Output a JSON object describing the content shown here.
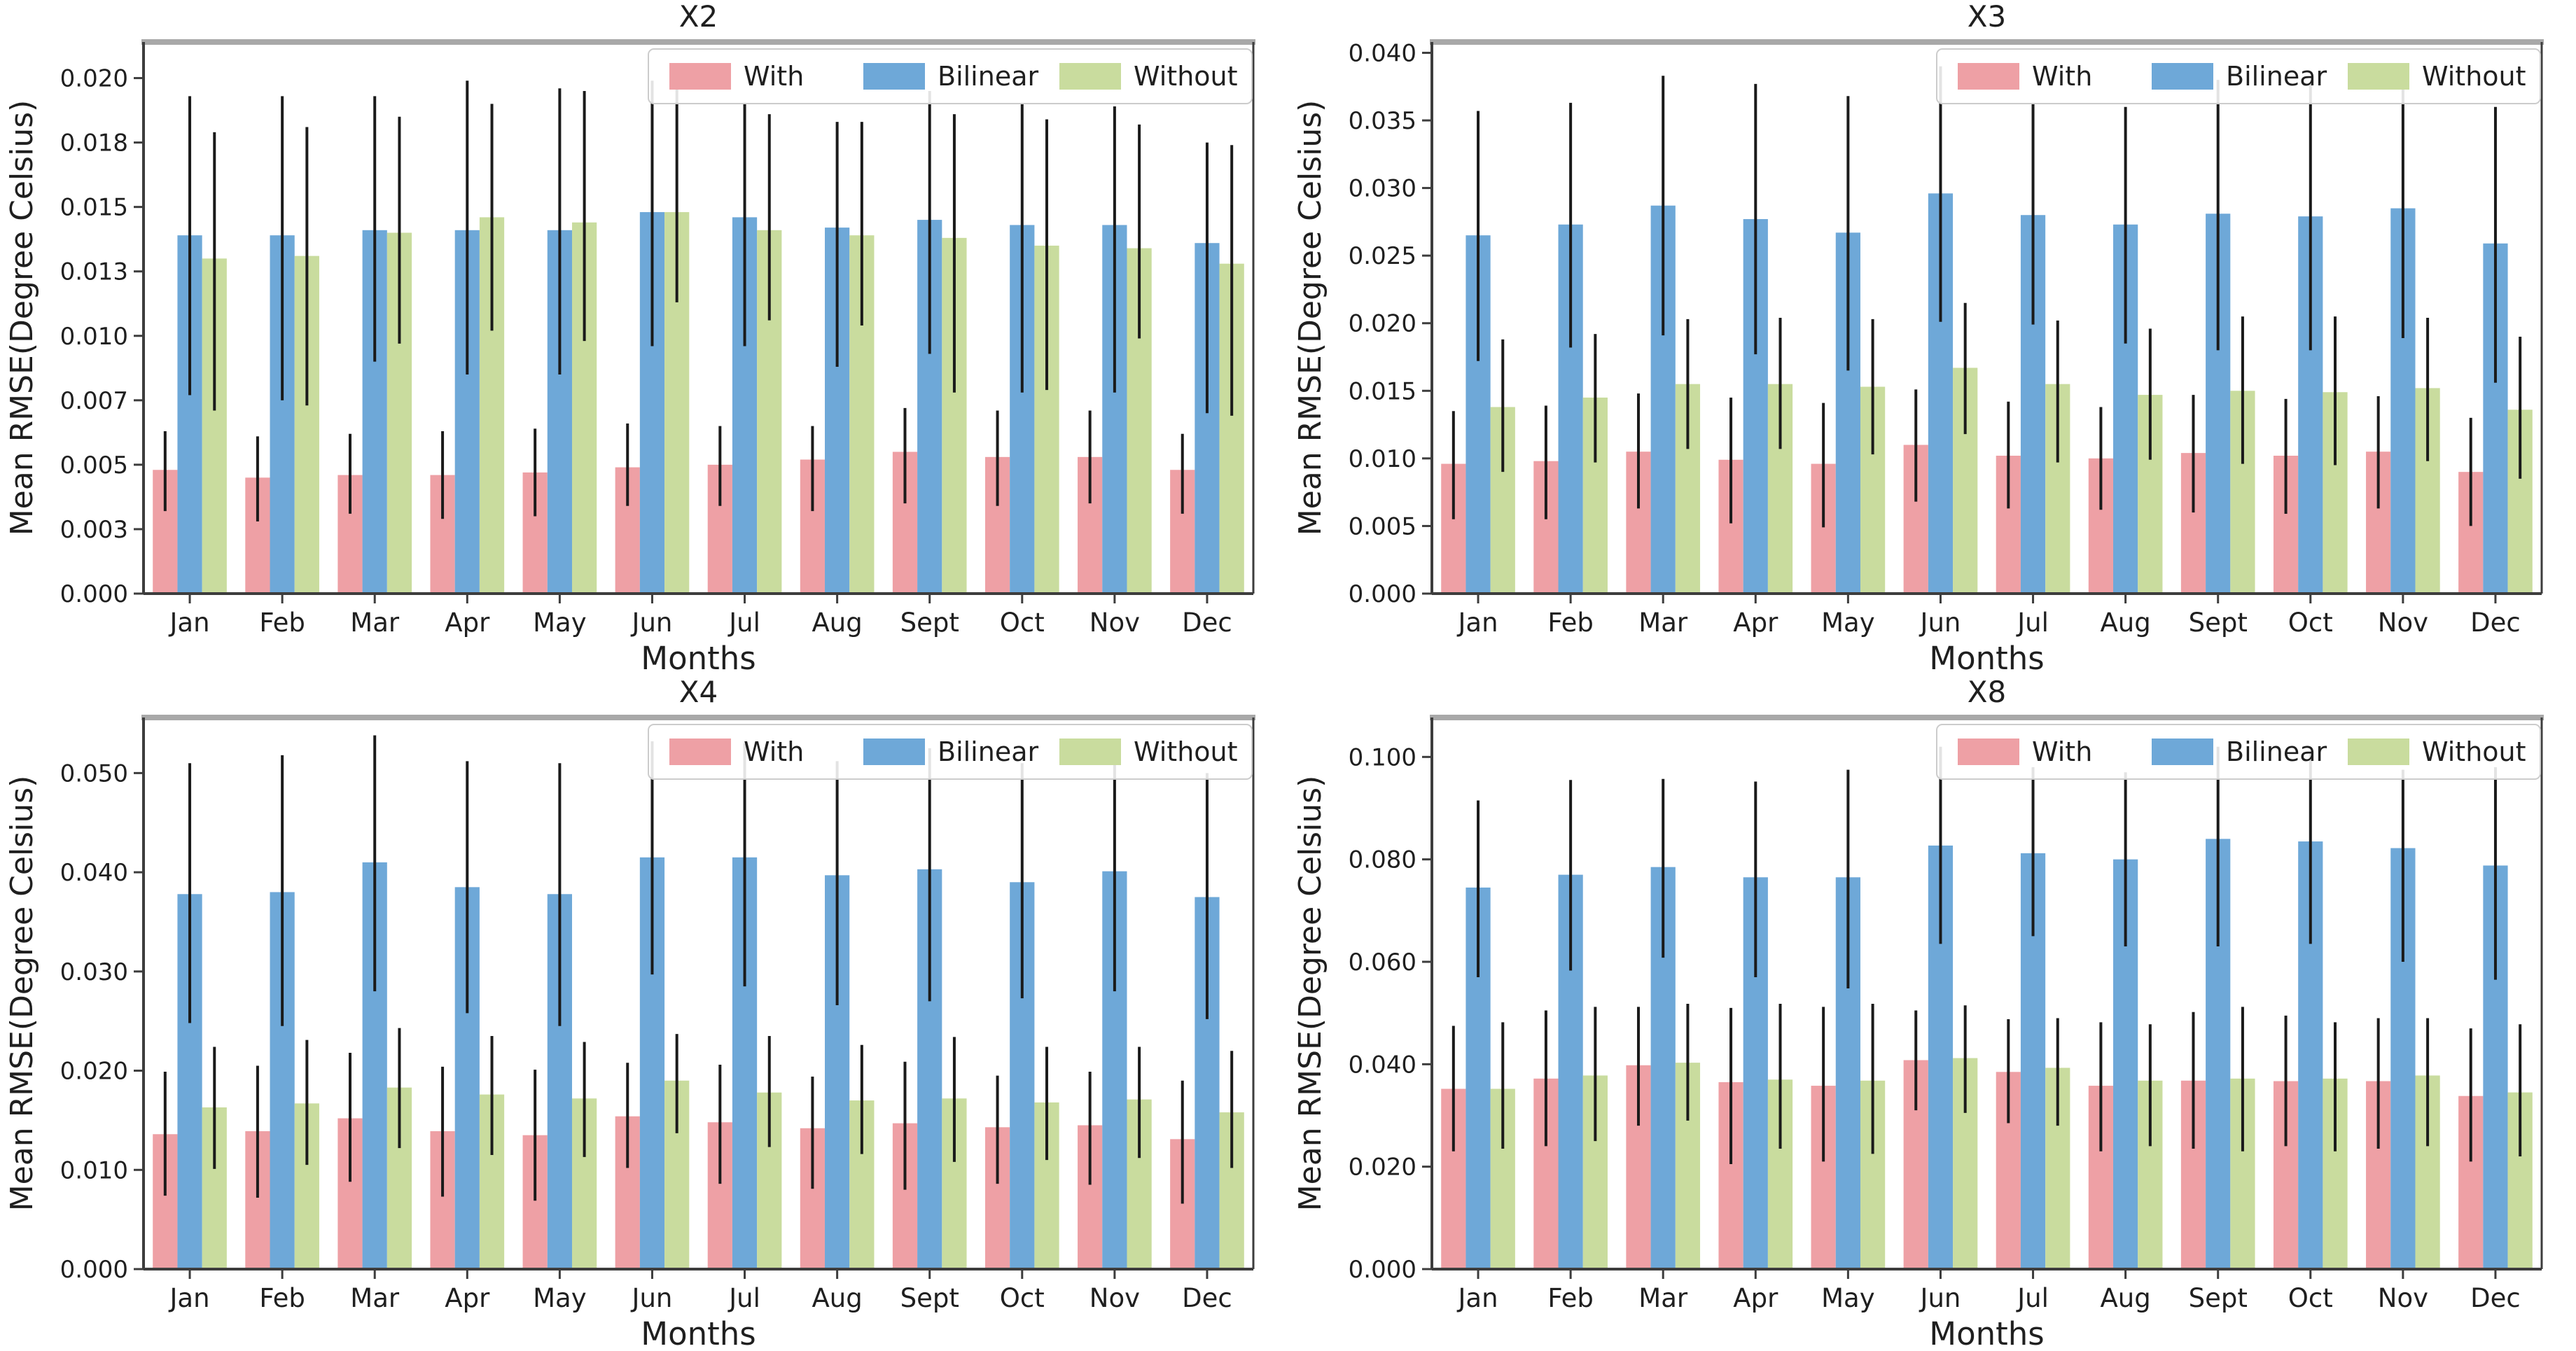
{
  "figure": {
    "background": "#ffffff",
    "layout": "2x2-grid",
    "xlabel": "Months",
    "ylabel": "Mean RMSE(Degree Celsius)"
  },
  "legend": {
    "position": "upper right",
    "items": [
      {
        "label": "With",
        "color": "#EEA0A5"
      },
      {
        "label": "Bilinear",
        "color": "#6EA8D8"
      },
      {
        "label": "Without",
        "color": "#C9DC9E"
      }
    ]
  },
  "style": {
    "errorbar_color": "#1a1a1a",
    "spine_dark": "#3d3d3d",
    "spine_top_gray": "#a8a8a8",
    "text_color": "#1f1f1f",
    "grid": false
  },
  "chart_data": [
    {
      "type": "bar",
      "title": "X2",
      "xlabel": "Months",
      "ylabel": "Mean RMSE(Degree Celsius)",
      "categories": [
        "Jan",
        "Feb",
        "Mar",
        "Apr",
        "May",
        "Jun",
        "Jul",
        "Aug",
        "Sept",
        "Oct",
        "Nov",
        "Dec"
      ],
      "ylim": [
        0,
        0.0214
      ],
      "yticks": {
        "values": [
          0,
          0.0025,
          0.005,
          0.0075,
          0.01,
          0.0125,
          0.015,
          0.0175,
          0.02
        ],
        "labels": [
          "0.000",
          "0.003",
          "0.005",
          "0.007",
          "0.010",
          "0.013",
          "0.015",
          "0.018",
          "0.020"
        ]
      },
      "series": [
        {
          "name": "With",
          "values": [
            0.0048,
            0.0045,
            0.0046,
            0.0046,
            0.0047,
            0.0049,
            0.005,
            0.0052,
            0.0055,
            0.0053,
            0.0053,
            0.0048
          ],
          "err_low": [
            0.0032,
            0.0028,
            0.0031,
            0.0029,
            0.003,
            0.0034,
            0.0034,
            0.0032,
            0.0035,
            0.0034,
            0.0035,
            0.0031
          ],
          "err_high": [
            0.0063,
            0.0061,
            0.0062,
            0.0063,
            0.0064,
            0.0066,
            0.0065,
            0.0065,
            0.0072,
            0.0071,
            0.0071,
            0.0062
          ]
        },
        {
          "name": "Bilinear",
          "values": [
            0.0139,
            0.0139,
            0.0141,
            0.0141,
            0.0141,
            0.0148,
            0.0146,
            0.0142,
            0.0145,
            0.0143,
            0.0143,
            0.0136
          ],
          "err_low": [
            0.0077,
            0.0075,
            0.009,
            0.0085,
            0.0085,
            0.0096,
            0.0096,
            0.0088,
            0.0093,
            0.0078,
            0.0078,
            0.007
          ],
          "err_high": [
            0.0193,
            0.0193,
            0.0193,
            0.0199,
            0.0196,
            0.0199,
            0.019,
            0.0183,
            0.0195,
            0.019,
            0.0189,
            0.0175
          ]
        },
        {
          "name": "Without",
          "values": [
            0.013,
            0.0131,
            0.014,
            0.0146,
            0.0144,
            0.0148,
            0.0141,
            0.0139,
            0.0138,
            0.0135,
            0.0134,
            0.0128
          ],
          "err_low": [
            0.0071,
            0.0073,
            0.0097,
            0.0102,
            0.0098,
            0.0113,
            0.0106,
            0.0104,
            0.0078,
            0.0079,
            0.0099,
            0.0069
          ],
          "err_high": [
            0.0179,
            0.0181,
            0.0185,
            0.019,
            0.0195,
            0.0197,
            0.0186,
            0.0183,
            0.0186,
            0.0184,
            0.0182,
            0.0174
          ]
        }
      ]
    },
    {
      "type": "bar",
      "title": "X3",
      "xlabel": "Months",
      "ylabel": "Mean RMSE(Degree Celsius)",
      "categories": [
        "Jan",
        "Feb",
        "Mar",
        "Apr",
        "May",
        "Jun",
        "Jul",
        "Aug",
        "Sept",
        "Oct",
        "Nov",
        "Dec"
      ],
      "ylim": [
        0,
        0.0408
      ],
      "yticks": {
        "values": [
          0,
          0.005,
          0.01,
          0.015,
          0.02,
          0.025,
          0.03,
          0.035,
          0.04
        ],
        "labels": [
          "0.000",
          "0.005",
          "0.010",
          "0.015",
          "0.020",
          "0.025",
          "0.030",
          "0.035",
          "0.040"
        ]
      },
      "series": [
        {
          "name": "With",
          "values": [
            0.0096,
            0.0098,
            0.0105,
            0.0099,
            0.0096,
            0.011,
            0.0102,
            0.01,
            0.0104,
            0.0102,
            0.0105,
            0.009
          ],
          "err_low": [
            0.0055,
            0.0055,
            0.0063,
            0.0052,
            0.0049,
            0.0068,
            0.0063,
            0.0062,
            0.006,
            0.0059,
            0.0063,
            0.005
          ],
          "err_high": [
            0.0135,
            0.0139,
            0.0148,
            0.0145,
            0.0141,
            0.0151,
            0.0142,
            0.0138,
            0.0147,
            0.0144,
            0.0146,
            0.013
          ]
        },
        {
          "name": "Bilinear",
          "values": [
            0.0265,
            0.0273,
            0.0287,
            0.0277,
            0.0267,
            0.0296,
            0.028,
            0.0273,
            0.0281,
            0.0279,
            0.0285,
            0.0259
          ],
          "err_low": [
            0.0172,
            0.0182,
            0.0191,
            0.0177,
            0.0165,
            0.0201,
            0.0199,
            0.0185,
            0.018,
            0.018,
            0.0189,
            0.0156
          ],
          "err_high": [
            0.0357,
            0.0363,
            0.0383,
            0.0377,
            0.0368,
            0.039,
            0.0362,
            0.036,
            0.038,
            0.0378,
            0.0382,
            0.036
          ]
        },
        {
          "name": "Without",
          "values": [
            0.0138,
            0.0145,
            0.0155,
            0.0155,
            0.0153,
            0.0167,
            0.0155,
            0.0147,
            0.015,
            0.0149,
            0.0152,
            0.0136
          ],
          "err_low": [
            0.009,
            0.0097,
            0.0107,
            0.0107,
            0.0103,
            0.0118,
            0.0097,
            0.0099,
            0.0096,
            0.0095,
            0.0098,
            0.0085
          ],
          "err_high": [
            0.0188,
            0.0192,
            0.0203,
            0.0204,
            0.0203,
            0.0215,
            0.0202,
            0.0196,
            0.0205,
            0.0205,
            0.0204,
            0.019
          ]
        }
      ]
    },
    {
      "type": "bar",
      "title": "X4",
      "xlabel": "Months",
      "ylabel": "Mean RMSE(Degree Celsius)",
      "categories": [
        "Jan",
        "Feb",
        "Mar",
        "Apr",
        "May",
        "Jun",
        "Jul",
        "Aug",
        "Sept",
        "Oct",
        "Nov",
        "Dec"
      ],
      "ylim": [
        0,
        0.0556
      ],
      "yticks": {
        "values": [
          0,
          0.01,
          0.02,
          0.03,
          0.04,
          0.05
        ],
        "labels": [
          "0.000",
          "0.010",
          "0.020",
          "0.030",
          "0.040",
          "0.050"
        ]
      },
      "series": [
        {
          "name": "With",
          "values": [
            0.0136,
            0.0139,
            0.0152,
            0.0139,
            0.0135,
            0.0154,
            0.0148,
            0.0142,
            0.0147,
            0.0143,
            0.0145,
            0.0131
          ],
          "err_low": [
            0.0074,
            0.0072,
            0.0088,
            0.0073,
            0.0069,
            0.0102,
            0.0086,
            0.0081,
            0.008,
            0.0086,
            0.0085,
            0.0066
          ],
          "err_high": [
            0.0199,
            0.0205,
            0.0218,
            0.0204,
            0.0201,
            0.0208,
            0.0206,
            0.0194,
            0.0209,
            0.0195,
            0.0199,
            0.019
          ]
        },
        {
          "name": "Bilinear",
          "values": [
            0.0378,
            0.038,
            0.041,
            0.0385,
            0.0378,
            0.0415,
            0.0415,
            0.0397,
            0.0403,
            0.039,
            0.0401,
            0.0375
          ],
          "err_low": [
            0.0248,
            0.0245,
            0.028,
            0.0258,
            0.0245,
            0.0297,
            0.0285,
            0.0266,
            0.027,
            0.0273,
            0.028,
            0.0252
          ],
          "err_high": [
            0.051,
            0.0518,
            0.0538,
            0.0512,
            0.051,
            0.0532,
            0.053,
            0.0512,
            0.0525,
            0.051,
            0.052,
            0.05
          ]
        },
        {
          "name": "Without",
          "values": [
            0.0163,
            0.0167,
            0.0183,
            0.0176,
            0.0172,
            0.019,
            0.0178,
            0.017,
            0.0172,
            0.0168,
            0.0171,
            0.0158
          ],
          "err_low": [
            0.0101,
            0.0105,
            0.0122,
            0.0115,
            0.0113,
            0.0137,
            0.0123,
            0.0116,
            0.0108,
            0.011,
            0.0112,
            0.0102
          ],
          "err_high": [
            0.0224,
            0.0231,
            0.0243,
            0.0235,
            0.0229,
            0.0237,
            0.0235,
            0.0226,
            0.0234,
            0.0224,
            0.0224,
            0.022
          ]
        }
      ]
    },
    {
      "type": "bar",
      "title": "X8",
      "xlabel": "Months",
      "ylabel": "Mean RMSE(Degree Celsius)",
      "categories": [
        "Jan",
        "Feb",
        "Mar",
        "Apr",
        "May",
        "Jun",
        "Jul",
        "Aug",
        "Sept",
        "Oct",
        "Nov",
        "Dec"
      ],
      "ylim": [
        0,
        0.1077
      ],
      "yticks": {
        "values": [
          0,
          0.02,
          0.04,
          0.06,
          0.08,
          0.1
        ],
        "labels": [
          "0.000",
          "0.020",
          "0.040",
          "0.060",
          "0.080",
          "0.100"
        ]
      },
      "series": [
        {
          "name": "With",
          "values": [
            0.0352,
            0.0372,
            0.0398,
            0.0365,
            0.0358,
            0.0408,
            0.0385,
            0.0358,
            0.0368,
            0.0367,
            0.0367,
            0.0338
          ],
          "err_low": [
            0.023,
            0.024,
            0.028,
            0.0205,
            0.021,
            0.031,
            0.0285,
            0.023,
            0.0235,
            0.024,
            0.0235,
            0.021
          ],
          "err_high": [
            0.0475,
            0.0505,
            0.0512,
            0.051,
            0.0512,
            0.0505,
            0.0488,
            0.0482,
            0.0502,
            0.0495,
            0.049,
            0.047
          ]
        },
        {
          "name": "Bilinear",
          "values": [
            0.0745,
            0.077,
            0.0785,
            0.0765,
            0.0765,
            0.0827,
            0.0812,
            0.08,
            0.084,
            0.0835,
            0.0822,
            0.0788
          ],
          "err_low": [
            0.057,
            0.0583,
            0.0608,
            0.057,
            0.0548,
            0.0635,
            0.065,
            0.063,
            0.063,
            0.0635,
            0.06,
            0.0565
          ],
          "err_high": [
            0.0915,
            0.0955,
            0.0957,
            0.0952,
            0.0975,
            0.102,
            0.098,
            0.097,
            0.102,
            0.101,
            0.0975,
            0.098
          ]
        },
        {
          "name": "Without",
          "values": [
            0.0352,
            0.0378,
            0.0403,
            0.037,
            0.0368,
            0.0412,
            0.0393,
            0.0368,
            0.0372,
            0.0372,
            0.0378,
            0.0345
          ],
          "err_low": [
            0.0235,
            0.025,
            0.029,
            0.0235,
            0.0225,
            0.0305,
            0.028,
            0.024,
            0.023,
            0.023,
            0.024,
            0.022
          ],
          "err_high": [
            0.0482,
            0.0512,
            0.0518,
            0.0518,
            0.0518,
            0.0515,
            0.049,
            0.0478,
            0.0512,
            0.0482,
            0.049,
            0.0478
          ]
        }
      ]
    }
  ]
}
